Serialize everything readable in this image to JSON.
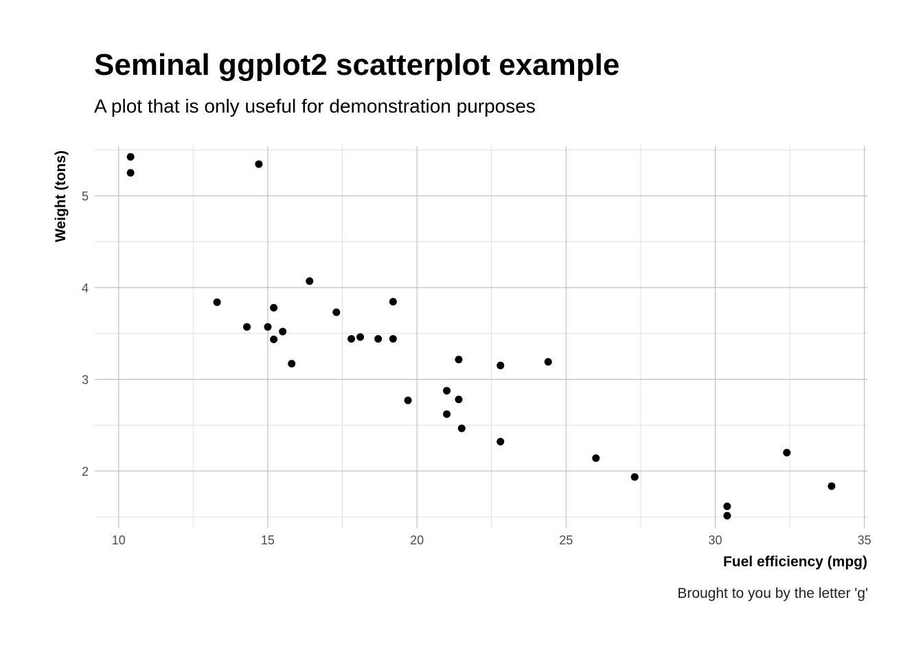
{
  "title": "Seminal ggplot2 scatterplot example",
  "subtitle": "A plot that is only useful for demonstration purposes",
  "caption": "Brought to you by the letter 'g'",
  "colors": {
    "point": "#000000",
    "major_grid": "#b3b3b3",
    "minor_grid": "#dedede",
    "tick_text": "#4d4d4d"
  },
  "chart_data": {
    "type": "scatter",
    "xlabel": "Fuel efficiency (mpg)",
    "ylabel": "Weight (tons)",
    "xlim": [
      9.2,
      35.1
    ],
    "ylim": [
      1.38,
      5.54
    ],
    "xticks": [
      10,
      15,
      20,
      25,
      30,
      35
    ],
    "yticks": [
      2,
      3,
      4,
      5
    ],
    "x_tick_labels": [
      "10",
      "15",
      "20",
      "25",
      "30",
      "35"
    ],
    "y_tick_labels": [
      "2",
      "3",
      "4",
      "5"
    ],
    "grid": true,
    "legend": "none",
    "points": [
      {
        "x": 21.0,
        "y": 2.62
      },
      {
        "x": 21.0,
        "y": 2.875
      },
      {
        "x": 22.8,
        "y": 2.32
      },
      {
        "x": 21.4,
        "y": 3.215
      },
      {
        "x": 18.7,
        "y": 3.44
      },
      {
        "x": 18.1,
        "y": 3.46
      },
      {
        "x": 14.3,
        "y": 3.57
      },
      {
        "x": 24.4,
        "y": 3.19
      },
      {
        "x": 22.8,
        "y": 3.15
      },
      {
        "x": 19.2,
        "y": 3.44
      },
      {
        "x": 17.8,
        "y": 3.44
      },
      {
        "x": 16.4,
        "y": 4.07
      },
      {
        "x": 17.3,
        "y": 3.73
      },
      {
        "x": 15.2,
        "y": 3.78
      },
      {
        "x": 10.4,
        "y": 5.25
      },
      {
        "x": 10.4,
        "y": 5.424
      },
      {
        "x": 14.7,
        "y": 5.345
      },
      {
        "x": 32.4,
        "y": 2.2
      },
      {
        "x": 30.4,
        "y": 1.615
      },
      {
        "x": 33.9,
        "y": 1.835
      },
      {
        "x": 21.5,
        "y": 2.465
      },
      {
        "x": 15.5,
        "y": 3.52
      },
      {
        "x": 15.2,
        "y": 3.435
      },
      {
        "x": 13.3,
        "y": 3.84
      },
      {
        "x": 19.2,
        "y": 3.845
      },
      {
        "x": 27.3,
        "y": 1.935
      },
      {
        "x": 26.0,
        "y": 2.14
      },
      {
        "x": 30.4,
        "y": 1.513
      },
      {
        "x": 15.8,
        "y": 3.17
      },
      {
        "x": 19.7,
        "y": 2.77
      },
      {
        "x": 15.0,
        "y": 3.57
      },
      {
        "x": 21.4,
        "y": 2.78
      }
    ]
  }
}
